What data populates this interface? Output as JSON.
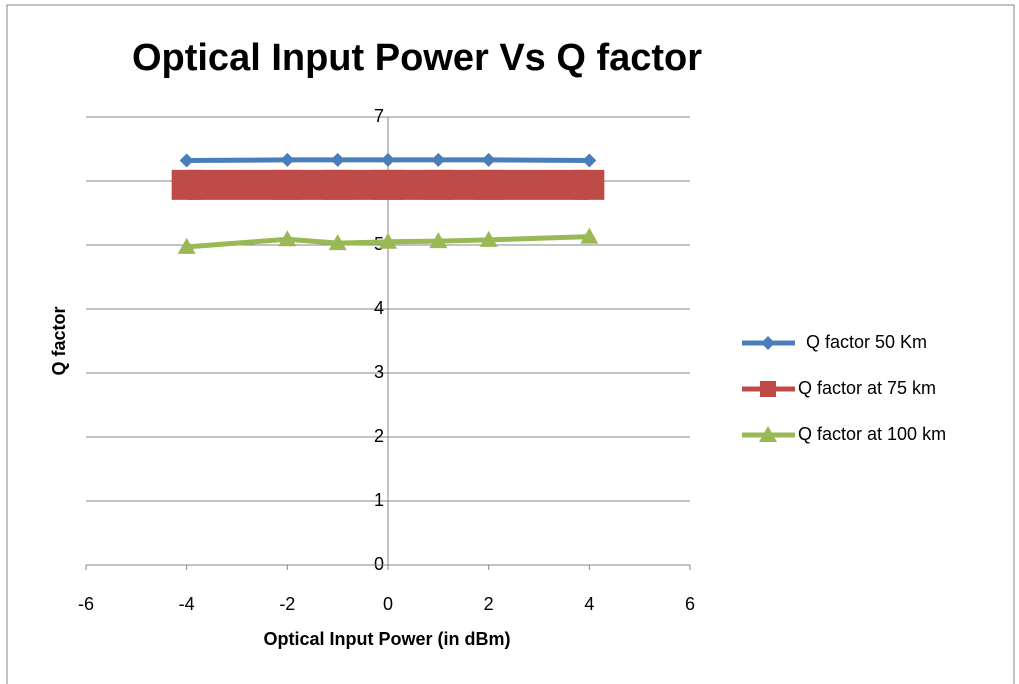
{
  "chart_data": {
    "type": "scatter-line",
    "title": "Optical Input Power Vs Q factor",
    "x_label": "Optical Input Power (in dBm)",
    "y_label": "Q factor",
    "x": [
      -4,
      -2,
      -1,
      0,
      1,
      2,
      4
    ],
    "series": [
      {
        "name": "Q factor 50 Km",
        "color": "#4a7ebb",
        "marker": "diamond",
        "values": [
          6.32,
          6.33,
          6.33,
          6.33,
          6.33,
          6.33,
          6.32
        ]
      },
      {
        "name": "Q factor at 75 km",
        "color": "#be4b48",
        "marker": "square",
        "values": [
          5.94,
          5.94,
          5.94,
          5.94,
          5.94,
          5.94,
          5.94
        ]
      },
      {
        "name": "Q factor at 100 km",
        "color": "#98b954",
        "marker": "triangle",
        "values": [
          4.97,
          5.09,
          5.03,
          5.05,
          5.06,
          5.08,
          5.13
        ]
      }
    ],
    "xlim": [
      -6,
      6
    ],
    "xticks": [
      -6,
      -4,
      -2,
      0,
      2,
      4,
      6
    ],
    "ylim": [
      0,
      7
    ],
    "yticks": [
      0,
      1,
      2,
      3,
      4,
      5,
      6,
      7
    ],
    "grid": true,
    "legend": "right"
  }
}
